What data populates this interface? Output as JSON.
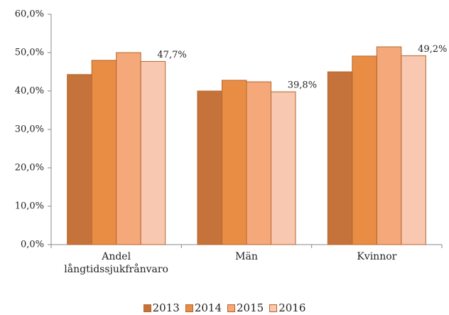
{
  "chart_data": {
    "type": "bar",
    "categories": [
      "Andel långtidssjukfrånvaro",
      "Män",
      "Kvinnor"
    ],
    "series": [
      {
        "name": "2013",
        "color": "#c5733a",
        "values": [
          44.3,
          40.0,
          45.0
        ]
      },
      {
        "name": "2014",
        "color": "#e98d45",
        "values": [
          48.0,
          42.8,
          49.1
        ]
      },
      {
        "name": "2015",
        "color": "#f5a97a",
        "values": [
          50.0,
          42.4,
          51.5
        ]
      },
      {
        "name": "2016",
        "color": "#f9c8b0",
        "values": [
          47.7,
          39.8,
          49.2
        ],
        "value_labels": [
          "47,7%",
          "39,8%",
          "49,2%"
        ]
      }
    ],
    "ylim": [
      0,
      60
    ],
    "yticks": [
      {
        "value": 0,
        "label": "0,0%"
      },
      {
        "value": 10,
        "label": "10,0%"
      },
      {
        "value": 20,
        "label": "20,0%"
      },
      {
        "value": 30,
        "label": "30,0%"
      },
      {
        "value": 40,
        "label": "40,0%"
      },
      {
        "value": 50,
        "label": "50,0%"
      },
      {
        "value": 60,
        "label": "60,0%"
      }
    ],
    "grid": false,
    "legend": "bottom"
  }
}
